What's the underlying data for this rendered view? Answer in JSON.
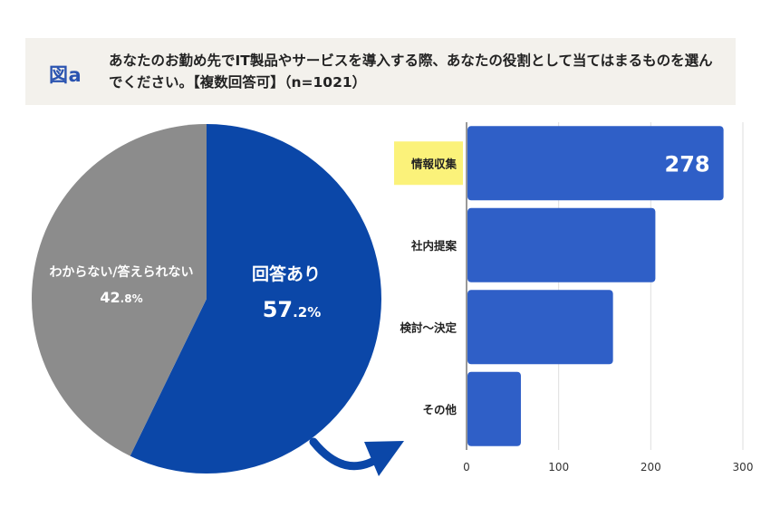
{
  "header": {
    "figure_label": "図a",
    "question": "あなたのお勤め先でIT製品やサービスを導入する際、あなたの役割として当てはまるものを選んでください。【複数回答可】（n=1021）"
  },
  "chart_data": [
    {
      "type": "pie",
      "slices": [
        {
          "label": "回答あり",
          "value": 57.2,
          "value_main": "57",
          "value_decimal": ".2%",
          "color": "#0b47a8"
        },
        {
          "label": "わからない/答えられない",
          "value": 42.8,
          "value_main": "42",
          "value_decimal": ".8%",
          "color": "#8c8c8c"
        }
      ]
    },
    {
      "type": "bar",
      "orientation": "horizontal",
      "categories": [
        "情報収集",
        "社内提案",
        "検討〜決定",
        "その他"
      ],
      "values": [
        278,
        204,
        158,
        58
      ],
      "highlight_category": "情報収集",
      "highlight_color": "#fbf27a",
      "value_label": "278",
      "bar_color": "#2f5fc7",
      "xlim": [
        0,
        300
      ],
      "xticks": [
        "0",
        "100",
        "200",
        "300"
      ],
      "grid": true
    }
  ]
}
